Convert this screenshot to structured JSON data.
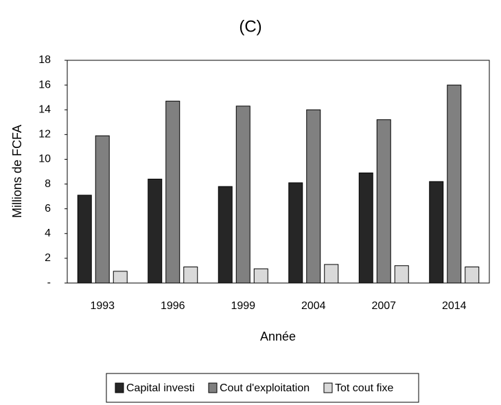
{
  "chart_data": {
    "type": "bar",
    "title": "(C)",
    "x_label": "Année",
    "y_label": "Millions de FCFA",
    "categories": [
      "1993",
      "1996",
      "1999",
      "2004",
      "2007",
      "2014"
    ],
    "series": [
      {
        "name": "Capital investi",
        "color": "#262626",
        "values": [
          7.1,
          8.4,
          7.8,
          8.1,
          8.9,
          8.2
        ]
      },
      {
        "name": "Cout d'exploitation",
        "color": "#808080",
        "values": [
          11.9,
          14.7,
          14.3,
          14.0,
          13.2,
          16.0
        ]
      },
      {
        "name": "Tot cout fixe",
        "color": "#d9d9d9",
        "values": [
          0.95,
          1.3,
          1.15,
          1.5,
          1.4,
          1.3
        ]
      }
    ],
    "ylim": [
      0,
      18
    ],
    "yticks": [
      {
        "value": 0,
        "label": "-"
      },
      2,
      4,
      6,
      8,
      10,
      12,
      14,
      16,
      18
    ],
    "legend": "bottom"
  }
}
